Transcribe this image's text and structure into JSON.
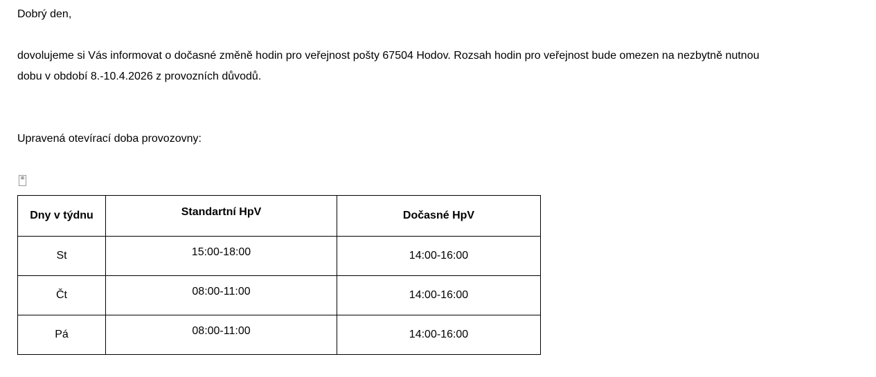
{
  "greeting": "Dobrý den,",
  "paragraph_line1": "dovolujeme si Vás informovat o dočasné změně hodin pro veřejnost pošty 67504 Hodov. Rozsah hodin pro veřejnost bude omezen na nezbytně nutnou",
  "paragraph_line2": "dobu v období 8.-10.4.2026 z provozních důvodů.",
  "table_label": "Upravená otevírací doba provozovny:",
  "table_move_icon": "table-move-handle-icon",
  "table": {
    "headers": [
      "Dny v týdnu",
      "Standartní HpV",
      "Dočasné HpV"
    ],
    "rows": [
      [
        "St",
        "15:00-18:00",
        "14:00-16:00"
      ],
      [
        "Čt",
        "08:00-11:00",
        "14:00-16:00"
      ],
      [
        "Pá",
        "08:00-11:00",
        "14:00-16:00"
      ]
    ]
  }
}
